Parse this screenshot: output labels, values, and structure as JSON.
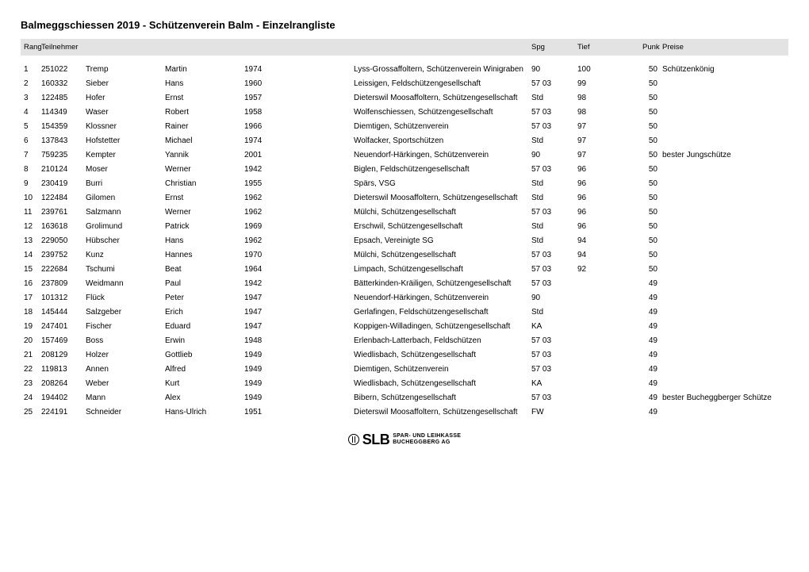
{
  "title": "Balmeggschiessen 2019 - Schützenverein Balm - Einzelrangliste",
  "headers": {
    "rang": "Rang",
    "teilnehmer": "Teilnehmer",
    "spg": "Spg",
    "tief": "Tief",
    "punkte": "Punkte",
    "preise": "Preise"
  },
  "rows": [
    {
      "rang": "1",
      "id": "251022",
      "last": "Tremp",
      "first": "Martin",
      "year": "1974",
      "club": "Lyss-Grossaffoltern, Schützenverein Winigraben",
      "spg": "90",
      "tief": "100",
      "punkte": "50",
      "preis": "Schützenkönig"
    },
    {
      "rang": "2",
      "id": "160332",
      "last": "Sieber",
      "first": "Hans",
      "year": "1960",
      "club": "Leissigen, Feldschützengesellschaft",
      "spg": "57 03",
      "tief": "99",
      "punkte": "50",
      "preis": ""
    },
    {
      "rang": "3",
      "id": "122485",
      "last": "Hofer",
      "first": "Ernst",
      "year": "1957",
      "club": "Dieterswil Moosaffoltern, Schützengesellschaft",
      "spg": "Std",
      "tief": "98",
      "punkte": "50",
      "preis": ""
    },
    {
      "rang": "4",
      "id": "114349",
      "last": "Waser",
      "first": "Robert",
      "year": "1958",
      "club": "Wolfenschiessen, Schützengesellschaft",
      "spg": "57 03",
      "tief": "98",
      "punkte": "50",
      "preis": ""
    },
    {
      "rang": "5",
      "id": "154359",
      "last": "Klossner",
      "first": "Rainer",
      "year": "1966",
      "club": "Diemtigen, Schützenverein",
      "spg": "57 03",
      "tief": "97",
      "punkte": "50",
      "preis": ""
    },
    {
      "rang": "6",
      "id": "137843",
      "last": "Hofstetter",
      "first": "Michael",
      "year": "1974",
      "club": "Wolfacker, Sportschützen",
      "spg": "Std",
      "tief": "97",
      "punkte": "50",
      "preis": ""
    },
    {
      "rang": "7",
      "id": "759235",
      "last": "Kempter",
      "first": "Yannik",
      "year": "2001",
      "club": "Neuendorf-Härkingen, Schützenverein",
      "spg": "90",
      "tief": "97",
      "punkte": "50",
      "preis": "bester Jungschütze"
    },
    {
      "rang": "8",
      "id": "210124",
      "last": "Moser",
      "first": "Werner",
      "year": "1942",
      "club": "Biglen, Feldschützengesellschaft",
      "spg": "57 03",
      "tief": "96",
      "punkte": "50",
      "preis": ""
    },
    {
      "rang": "9",
      "id": "230419",
      "last": "Burri",
      "first": "Christian",
      "year": "1955",
      "club": "Spärs, VSG",
      "spg": "Std",
      "tief": "96",
      "punkte": "50",
      "preis": ""
    },
    {
      "rang": "10",
      "id": "122484",
      "last": "Gilomen",
      "first": "Ernst",
      "year": "1962",
      "club": "Dieterswil Moosaffoltern, Schützengesellschaft",
      "spg": "Std",
      "tief": "96",
      "punkte": "50",
      "preis": ""
    },
    {
      "rang": "11",
      "id": "239761",
      "last": "Salzmann",
      "first": "Werner",
      "year": "1962",
      "club": "Mülchi, Schützengesellschaft",
      "spg": "57 03",
      "tief": "96",
      "punkte": "50",
      "preis": ""
    },
    {
      "rang": "12",
      "id": "163618",
      "last": "Grolimund",
      "first": "Patrick",
      "year": "1969",
      "club": "Erschwil, Schützengesellschaft",
      "spg": "Std",
      "tief": "96",
      "punkte": "50",
      "preis": ""
    },
    {
      "rang": "13",
      "id": "229050",
      "last": "Hübscher",
      "first": "Hans",
      "year": "1962",
      "club": "Epsach, Vereinigte SG",
      "spg": "Std",
      "tief": "94",
      "punkte": "50",
      "preis": ""
    },
    {
      "rang": "14",
      "id": "239752",
      "last": "Kunz",
      "first": "Hannes",
      "year": "1970",
      "club": "Mülchi, Schützengesellschaft",
      "spg": "57 03",
      "tief": "94",
      "punkte": "50",
      "preis": ""
    },
    {
      "rang": "15",
      "id": "222684",
      "last": "Tschumi",
      "first": "Beat",
      "year": "1964",
      "club": "Limpach, Schützengesellschaft",
      "spg": "57 03",
      "tief": "92",
      "punkte": "50",
      "preis": ""
    },
    {
      "rang": "16",
      "id": "237809",
      "last": "Weidmann",
      "first": "Paul",
      "year": "1942",
      "club": "Bätterkinden-Kräiligen, Schützengesellschaft",
      "spg": "57 03",
      "tief": "",
      "punkte": "49",
      "preis": ""
    },
    {
      "rang": "17",
      "id": "101312",
      "last": "Flück",
      "first": "Peter",
      "year": "1947",
      "club": "Neuendorf-Härkingen, Schützenverein",
      "spg": "90",
      "tief": "",
      "punkte": "49",
      "preis": ""
    },
    {
      "rang": "18",
      "id": "145444",
      "last": "Salzgeber",
      "first": "Erich",
      "year": "1947",
      "club": "Gerlafingen, Feldschützengesellschaft",
      "spg": "Std",
      "tief": "",
      "punkte": "49",
      "preis": ""
    },
    {
      "rang": "19",
      "id": "247401",
      "last": "Fischer",
      "first": "Eduard",
      "year": "1947",
      "club": "Koppigen-Willadingen, Schützengesellschaft",
      "spg": "KA",
      "tief": "",
      "punkte": "49",
      "preis": ""
    },
    {
      "rang": "20",
      "id": "157469",
      "last": "Boss",
      "first": "Erwin",
      "year": "1948",
      "club": "Erlenbach-Latterbach, Feldschützen",
      "spg": "57 03",
      "tief": "",
      "punkte": "49",
      "preis": ""
    },
    {
      "rang": "21",
      "id": "208129",
      "last": "Holzer",
      "first": "Gottlieb",
      "year": "1949",
      "club": "Wiedlisbach, Schützengesellschaft",
      "spg": "57 03",
      "tief": "",
      "punkte": "49",
      "preis": ""
    },
    {
      "rang": "22",
      "id": "119813",
      "last": "Annen",
      "first": "Alfred",
      "year": "1949",
      "club": "Diemtigen, Schützenverein",
      "spg": "57 03",
      "tief": "",
      "punkte": "49",
      "preis": ""
    },
    {
      "rang": "23",
      "id": "208264",
      "last": "Weber",
      "first": "Kurt",
      "year": "1949",
      "club": "Wiedlisbach, Schützengesellschaft",
      "spg": "KA",
      "tief": "",
      "punkte": "49",
      "preis": ""
    },
    {
      "rang": "24",
      "id": "194402",
      "last": "Mann",
      "first": "Alex",
      "year": "1949",
      "club": "Bibern, Schützengesellschaft",
      "spg": "57 03",
      "tief": "",
      "punkte": "49",
      "preis": "bester Bucheggberger Schütze"
    },
    {
      "rang": "25",
      "id": "224191",
      "last": "Schneider",
      "first": "Hans-Ulrich",
      "year": "1951",
      "club": "Dieterswil Moosaffoltern, Schützengesellschaft",
      "spg": "FW",
      "tief": "",
      "punkte": "49",
      "preis": ""
    }
  ],
  "footer": {
    "brand": "SLB",
    "line1": "SPAR- UND LEIHKASSE",
    "line2": "BUCHEGGBERG AG"
  }
}
